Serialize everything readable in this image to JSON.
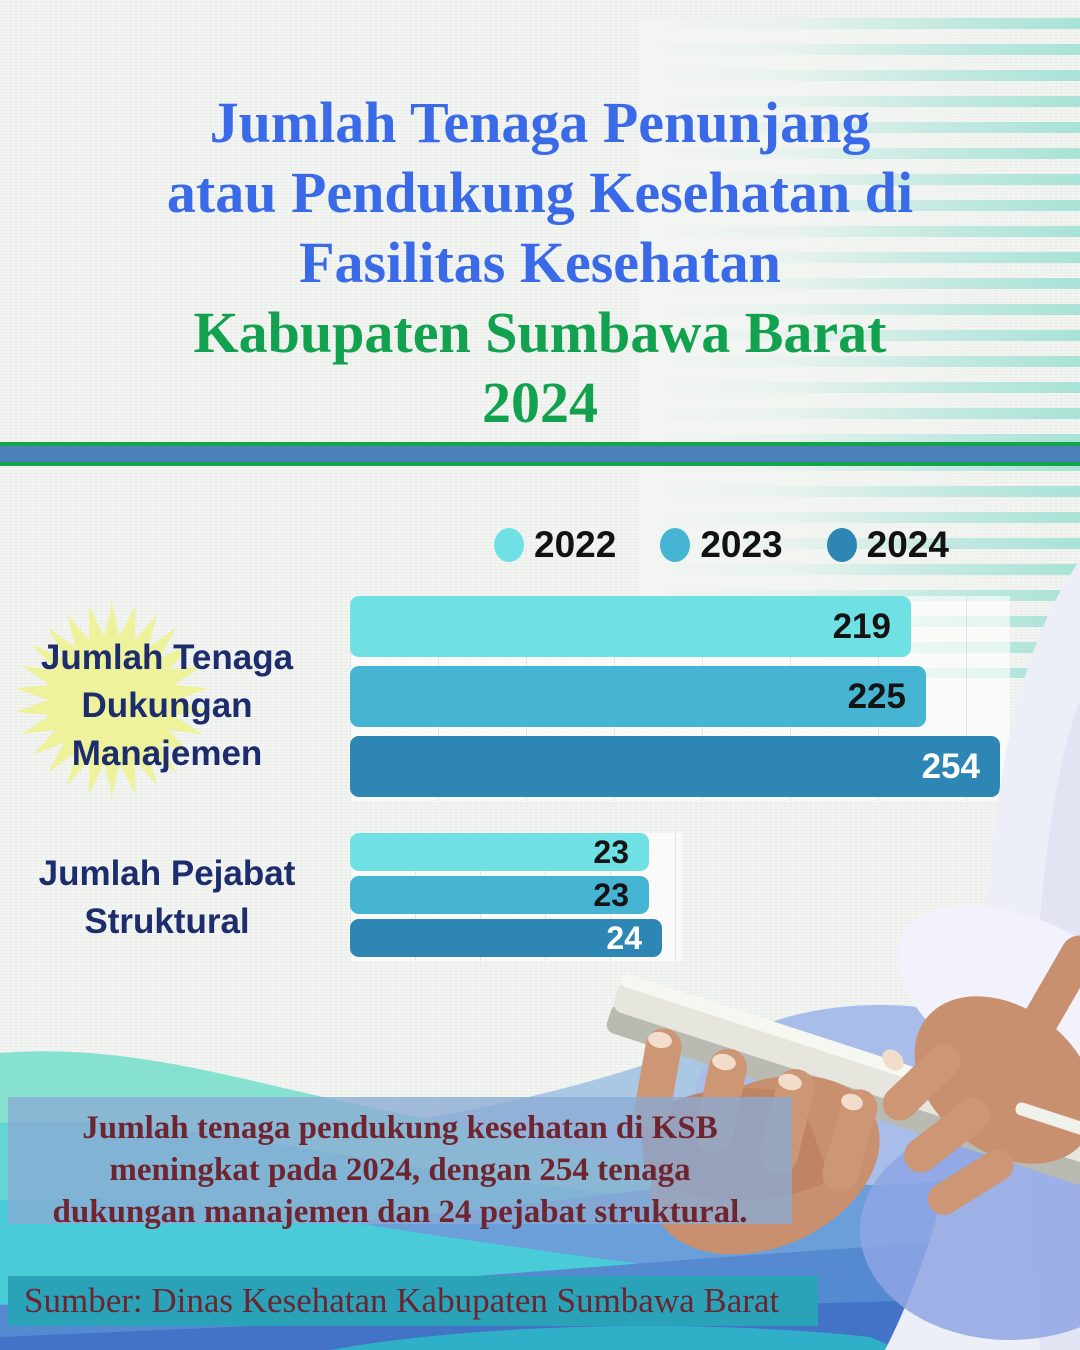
{
  "title": {
    "lines_blue": [
      "Jumlah Tenaga Penunjang",
      "atau Pendukung Kesehatan di",
      "Fasilitas Kesehatan"
    ],
    "lines_green": [
      "Kabupaten Sumbawa Barat",
      "2024"
    ],
    "blue_color": "#3a6ae8",
    "green_color": "#12a14e"
  },
  "legend": {
    "items": [
      {
        "label": "2022",
        "color": "#6fe1e5"
      },
      {
        "label": "2023",
        "color": "#45b5d3"
      },
      {
        "label": "2024",
        "color": "#2e86b4"
      }
    ]
  },
  "chart_data": {
    "type": "bar",
    "orientation": "horizontal",
    "title": "Jumlah Tenaga Penunjang atau Pendukung Kesehatan di Fasilitas Kesehatan Kabupaten Sumbawa Barat 2024",
    "categories": [
      "Jumlah Tenaga Dukungan Manajemen",
      "Jumlah Pejabat Struktural"
    ],
    "series": [
      {
        "name": "2022",
        "color": "#6fe1e5",
        "values": [
          219,
          23
        ]
      },
      {
        "name": "2023",
        "color": "#45b5d3",
        "values": [
          225,
          23
        ]
      },
      {
        "name": "2024",
        "color": "#2e86b4",
        "values": [
          254,
          24
        ]
      }
    ],
    "groups": [
      {
        "label_lines": [
          "Jumlah Tenaga",
          "Dukungan",
          "Manajemen"
        ],
        "values": [
          219,
          225,
          254
        ],
        "xlim": [
          0,
          280
        ],
        "highlight": "yellow-starburst"
      },
      {
        "label_lines": [
          "Jumlah Pejabat",
          "Struktural"
        ],
        "values": [
          23,
          23,
          24
        ],
        "xlim": [
          0,
          26
        ]
      }
    ],
    "value_label_colors": [
      [
        "#141414",
        "#141414",
        "#ffffff"
      ],
      [
        "#141414",
        "#141414",
        "#ffffff"
      ]
    ],
    "legend_position": "top",
    "grid": true
  },
  "callout": {
    "lines": [
      "Jumlah tenaga pendukung kesehatan di KSB",
      "meningkat pada 2024, dengan 254 tenaga",
      "dukungan manajemen dan 24 pejabat struktural."
    ],
    "text_color": "#6e2530"
  },
  "source": {
    "text": "Sumber: Dinas Kesehatan Kabupaten Sumbawa Barat"
  },
  "colors": {
    "divider_green": "#16a44b",
    "divider_blue": "#4d80b8",
    "category_label": "#1c2c6d",
    "starburst": "#eef39b",
    "callout_bg": "rgba(139,170,213,0.78)",
    "source_bg": "#2aa3b8",
    "maroon_text": "#6a2630"
  }
}
